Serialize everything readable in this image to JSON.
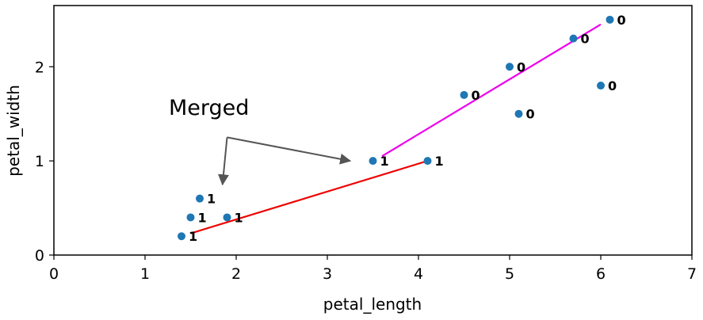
{
  "chart_data": {
    "type": "scatter",
    "title": "",
    "xlabel": "petal_length",
    "ylabel": "petal_width",
    "xlim": [
      0,
      7
    ],
    "ylim": [
      0,
      2.65
    ],
    "xticks": [
      0,
      1,
      2,
      3,
      4,
      5,
      6,
      7
    ],
    "yticks": [
      0,
      1,
      2
    ],
    "grid": false,
    "point_color": "#1f77b4",
    "points": [
      {
        "x": 1.4,
        "y": 0.2,
        "label": "1"
      },
      {
        "x": 1.5,
        "y": 0.4,
        "label": "1"
      },
      {
        "x": 1.6,
        "y": 0.6,
        "label": "1"
      },
      {
        "x": 1.9,
        "y": 0.4,
        "label": "1"
      },
      {
        "x": 3.5,
        "y": 1.0,
        "label": "1"
      },
      {
        "x": 4.1,
        "y": 1.0,
        "label": "1"
      },
      {
        "x": 4.5,
        "y": 1.7,
        "label": "0"
      },
      {
        "x": 5.0,
        "y": 2.0,
        "label": "0"
      },
      {
        "x": 5.1,
        "y": 1.5,
        "label": "0"
      },
      {
        "x": 5.7,
        "y": 2.3,
        "label": "0"
      },
      {
        "x": 6.0,
        "y": 1.8,
        "label": "0"
      },
      {
        "x": 6.1,
        "y": 2.5,
        "label": "0"
      }
    ],
    "lines": [
      {
        "color": "#ee0000",
        "x": [
          1.5,
          4.1
        ],
        "y": [
          0.23,
          1.0
        ]
      },
      {
        "color": "#ee00ee",
        "x": [
          3.6,
          6.0
        ],
        "y": [
          1.05,
          2.45
        ]
      }
    ],
    "annotation": {
      "text": "Merged",
      "arrow_color": "#555555",
      "anchor": {
        "x": 1.9,
        "y": 1.25
      },
      "targets": [
        {
          "x": 1.85,
          "y": 0.75
        },
        {
          "x": 3.25,
          "y": 1.0
        }
      ]
    }
  }
}
